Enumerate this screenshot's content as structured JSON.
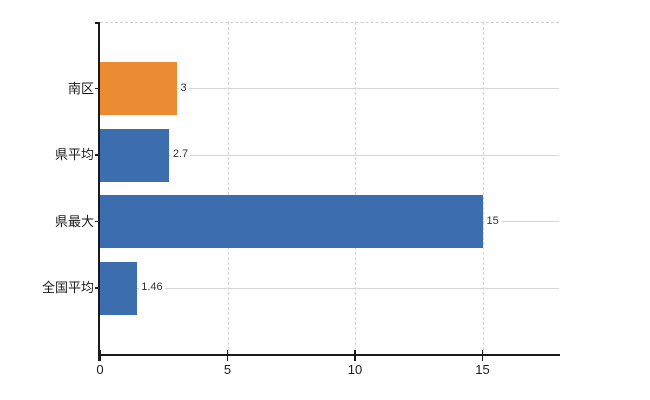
{
  "chart_data": {
    "type": "bar",
    "orientation": "horizontal",
    "title": "",
    "xlabel": "",
    "ylabel": "",
    "categories": [
      "南区",
      "県平均",
      "県最大",
      "全国平均"
    ],
    "values": [
      3,
      2.7,
      15,
      1.46
    ],
    "data_labels": [
      "3",
      "2.7",
      "15",
      "1.46"
    ],
    "bar_colors": [
      "#EB8C33",
      "#3C6DAF",
      "#3C6DAF",
      "#3C6DAF"
    ],
    "x_ticks": [
      0,
      5,
      10,
      15
    ],
    "x_tick_labels": [
      "0",
      "5",
      "10",
      "15"
    ],
    "xlim": [
      0,
      18
    ],
    "grid": {
      "vertical_style": "dashed",
      "horizontal_style": "solid",
      "top_frame_style": "dashed"
    },
    "legend": "none",
    "colors": {
      "background": "#ffffff",
      "axis": "#1a1a1a",
      "gridline": "#d5d5d5",
      "category_text": "#1a1a1a",
      "tick_text": "#1a1a1a",
      "data_label_text": "#333333",
      "highlight_bar": "#EB8C33",
      "default_bar": "#3C6DAF"
    }
  }
}
